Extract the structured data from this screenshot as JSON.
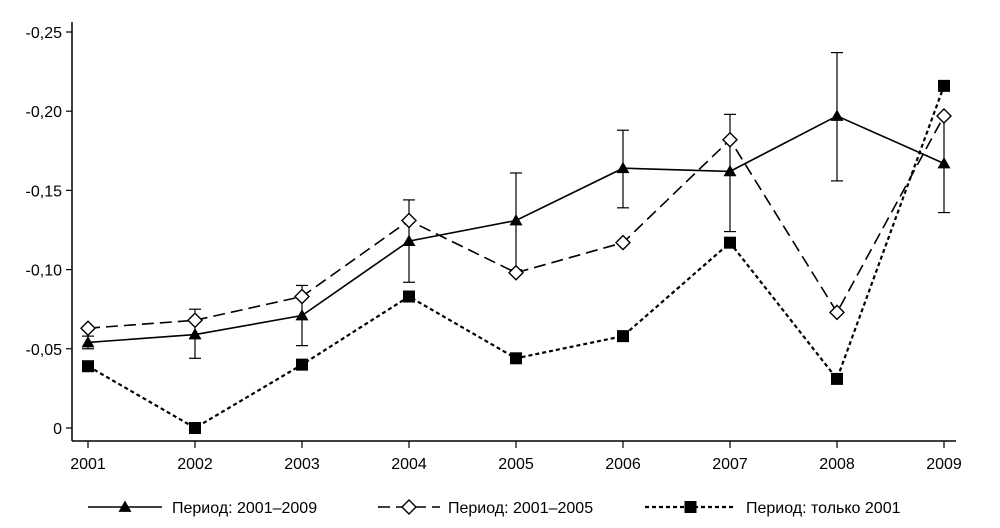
{
  "chart_data": {
    "type": "line",
    "title": "",
    "xlabel": "",
    "ylabel": "",
    "x": [
      2001,
      2002,
      2003,
      2004,
      2005,
      2006,
      2007,
      2008,
      2009
    ],
    "x_tick_labels": [
      "2001",
      "2002",
      "2003",
      "2004",
      "2005",
      "2006",
      "2007",
      "2008",
      "2009"
    ],
    "y_ticks": [
      0,
      -0.05,
      -0.1,
      -0.15,
      -0.2,
      -0.25
    ],
    "y_tick_labels": [
      "0",
      "-0,05",
      "-0,10",
      "-0,15",
      "-0,20",
      "-0,25"
    ],
    "ylim": [
      0,
      -0.25
    ],
    "y_axis_inverted": true,
    "grid": false,
    "legend_position": "bottom",
    "series": [
      {
        "name": "Период: 2001–2009",
        "line_style": "solid",
        "marker": "filled-triangle",
        "values": [
          -0.054,
          -0.059,
          -0.071,
          -0.118,
          -0.131,
          -0.164,
          -0.162,
          -0.197,
          -0.167
        ],
        "error_low": [
          -0.05,
          -0.044,
          -0.052,
          -0.092,
          -0.1,
          -0.139,
          -0.124,
          -0.156,
          -0.136
        ],
        "error_high": [
          -0.058,
          -0.075,
          -0.09,
          -0.144,
          -0.161,
          -0.188,
          -0.198,
          -0.237,
          -0.197
        ]
      },
      {
        "name": "Период: 2001–2005",
        "line_style": "dashed",
        "marker": "open-diamond",
        "values": [
          -0.063,
          -0.068,
          -0.083,
          -0.131,
          -0.098,
          -0.117,
          -0.182,
          -0.073,
          -0.197
        ]
      },
      {
        "name": "Период: только 2001",
        "line_style": "dotted",
        "marker": "filled-square",
        "values": [
          -0.039,
          0.0,
          -0.04,
          -0.083,
          -0.044,
          -0.058,
          -0.117,
          -0.031,
          -0.216
        ]
      }
    ]
  }
}
